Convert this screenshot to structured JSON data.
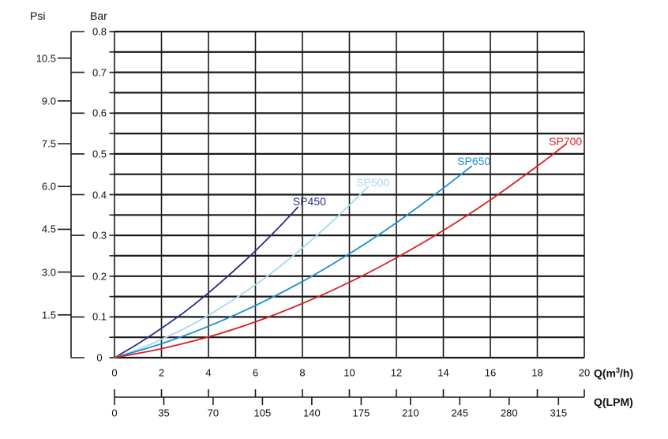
{
  "chart_data": {
    "type": "line",
    "title": "",
    "description": "Pump performance curves: head pressure (Bar / Psi) versus flow rate Q (m3/h and LPM)",
    "grid": "on",
    "legend_position": "inline-labels-on-curves",
    "colors": {
      "grid": "#1a1a1a",
      "text": "#111111"
    },
    "axes": {
      "psi": {
        "title": "Psi",
        "tick_labels": [
          "1.5",
          "3.0",
          "4.5",
          "6.0",
          "7.5",
          "9.0",
          "10.5"
        ],
        "bar_per_psi": 0.07
      },
      "bar": {
        "title": "Bar",
        "tick_labels": [
          "0",
          "0.1",
          "0.2",
          "0.3",
          "0.4",
          "0.5",
          "0.6",
          "0.7",
          "0.8"
        ],
        "range": [
          0,
          0.8
        ],
        "grid_step": 0.05
      },
      "q_m3h": {
        "title_prefix": "Q(m",
        "title_sup": "3",
        "title_suffix": "/h)",
        "tick_values": [
          0,
          2,
          4,
          6,
          8,
          10,
          12,
          14,
          16,
          18,
          20
        ],
        "range": [
          0,
          20
        ]
      },
      "q_lpm": {
        "title": "Q(LPM)",
        "tick_values": [
          0,
          35,
          70,
          105,
          140,
          175,
          210,
          245,
          280,
          315
        ],
        "lpm_per_m3h": 16.6667
      }
    },
    "series": [
      {
        "name": "SP450",
        "color": "#2a2d87",
        "label_q": 8.3,
        "label_bar": 0.384,
        "points": [
          [
            0,
            0
          ],
          [
            1,
            0.034
          ],
          [
            2,
            0.072
          ],
          [
            3,
            0.113
          ],
          [
            4,
            0.159
          ],
          [
            5,
            0.209
          ],
          [
            6,
            0.262
          ],
          [
            7,
            0.32
          ],
          [
            7.8,
            0.369
          ]
        ]
      },
      {
        "name": "SP500",
        "color": "#a9d7ef",
        "label_q": 11.0,
        "label_bar": 0.43,
        "points": [
          [
            0,
            0
          ],
          [
            1,
            0.02
          ],
          [
            2,
            0.045
          ],
          [
            3,
            0.072
          ],
          [
            4,
            0.104
          ],
          [
            5,
            0.14
          ],
          [
            6,
            0.179
          ],
          [
            7,
            0.222
          ],
          [
            8,
            0.269
          ],
          [
            9,
            0.32
          ],
          [
            10,
            0.374
          ],
          [
            10.8,
            0.42
          ]
        ]
      },
      {
        "name": "SP650",
        "color": "#1d8fd1",
        "label_q": 15.3,
        "label_bar": 0.482,
        "points": [
          [
            0,
            0
          ],
          [
            2,
            0.034
          ],
          [
            4,
            0.077
          ],
          [
            6,
            0.128
          ],
          [
            8,
            0.187
          ],
          [
            10,
            0.255
          ],
          [
            12,
            0.331
          ],
          [
            14,
            0.416
          ],
          [
            15.2,
            0.47
          ]
        ]
      },
      {
        "name": "SP700",
        "color": "#d9201f",
        "label_q": 19.2,
        "label_bar": 0.531,
        "points": [
          [
            0,
            0
          ],
          [
            2,
            0.022
          ],
          [
            4,
            0.051
          ],
          [
            6,
            0.088
          ],
          [
            8,
            0.133
          ],
          [
            10,
            0.185
          ],
          [
            12,
            0.245
          ],
          [
            14,
            0.312
          ],
          [
            16,
            0.387
          ],
          [
            18,
            0.47
          ],
          [
            19.2,
            0.523
          ]
        ]
      }
    ]
  }
}
